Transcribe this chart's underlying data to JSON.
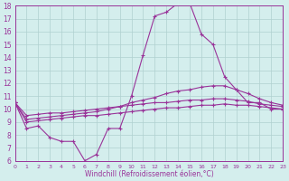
{
  "xlabel": "Windchill (Refroidissement éolien,°C)",
  "background_color": "#d4eeed",
  "line_color": "#993399",
  "grid_color": "#b0d0d0",
  "hours": [
    0,
    1,
    2,
    3,
    4,
    5,
    6,
    7,
    8,
    9,
    10,
    11,
    12,
    13,
    14,
    15,
    16,
    17,
    18,
    19,
    20,
    21,
    22,
    23
  ],
  "line1": [
    10.5,
    8.5,
    8.7,
    7.8,
    7.5,
    7.5,
    6.0,
    6.5,
    8.5,
    8.5,
    11.0,
    14.2,
    17.2,
    17.5,
    18.2,
    18.2,
    15.8,
    15.0,
    12.5,
    11.5,
    10.5,
    10.5,
    10.0,
    10.0
  ],
  "line2": [
    10.5,
    9.2,
    9.3,
    9.4,
    9.5,
    9.6,
    9.7,
    9.8,
    10.0,
    10.2,
    10.5,
    10.7,
    10.9,
    11.2,
    11.4,
    11.5,
    11.7,
    11.8,
    11.8,
    11.5,
    11.2,
    10.8,
    10.5,
    10.3
  ],
  "line3": [
    10.5,
    9.5,
    9.6,
    9.7,
    9.7,
    9.8,
    9.9,
    10.0,
    10.1,
    10.2,
    10.3,
    10.4,
    10.5,
    10.5,
    10.6,
    10.7,
    10.7,
    10.8,
    10.8,
    10.7,
    10.6,
    10.4,
    10.3,
    10.2
  ],
  "line4": [
    10.5,
    9.0,
    9.1,
    9.2,
    9.3,
    9.4,
    9.5,
    9.5,
    9.6,
    9.7,
    9.8,
    9.9,
    10.0,
    10.1,
    10.1,
    10.2,
    10.3,
    10.3,
    10.4,
    10.3,
    10.3,
    10.2,
    10.1,
    10.0
  ],
  "ylim": [
    6,
    18
  ],
  "yticks": [
    6,
    7,
    8,
    9,
    10,
    11,
    12,
    13,
    14,
    15,
    16,
    17,
    18
  ],
  "xlim": [
    0,
    23
  ]
}
